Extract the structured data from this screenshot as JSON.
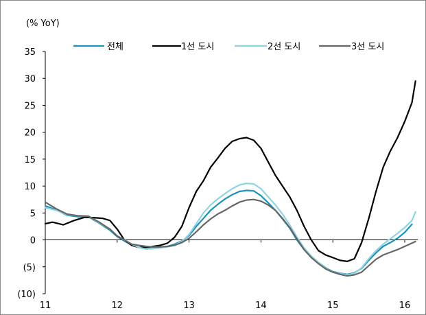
{
  "chart_data": {
    "type": "line",
    "unit_label": "(% YoY)",
    "y_ticks": [
      35,
      30,
      25,
      20,
      15,
      10,
      5,
      0,
      -5,
      -10
    ],
    "y_tick_labels": [
      "35",
      "30",
      "25",
      "20",
      "15",
      "10",
      "5",
      "0",
      "(5)",
      "(10)"
    ],
    "ylim": [
      -10,
      35
    ],
    "x_ticks": [
      11,
      12,
      13,
      14,
      15,
      16
    ],
    "x_tick_labels": [
      "11",
      "12",
      "13",
      "14",
      "15",
      "16"
    ],
    "xlim": [
      11,
      16.15
    ],
    "legend_position": "top",
    "grid": false,
    "series": [
      {
        "name": "전체",
        "color": "#1b93b8",
        "points": [
          [
            11.0,
            6.3
          ],
          [
            11.15,
            5.6
          ],
          [
            11.3,
            4.6
          ],
          [
            11.45,
            4.3
          ],
          [
            11.6,
            4.3
          ],
          [
            11.75,
            3.1
          ],
          [
            11.9,
            1.8
          ],
          [
            12.0,
            0.6
          ],
          [
            12.1,
            -0.2
          ],
          [
            12.2,
            -0.9
          ],
          [
            12.3,
            -1.4
          ],
          [
            12.4,
            -1.6
          ],
          [
            12.5,
            -1.5
          ],
          [
            12.6,
            -1.3
          ],
          [
            12.7,
            -1.2
          ],
          [
            12.8,
            -0.8
          ],
          [
            12.9,
            -0.2
          ],
          [
            13.0,
            0.8
          ],
          [
            13.1,
            2.5
          ],
          [
            13.2,
            4.0
          ],
          [
            13.3,
            5.5
          ],
          [
            13.4,
            6.6
          ],
          [
            13.5,
            7.6
          ],
          [
            13.6,
            8.4
          ],
          [
            13.7,
            9.0
          ],
          [
            13.8,
            9.2
          ],
          [
            13.9,
            9.1
          ],
          [
            14.0,
            8.2
          ],
          [
            14.1,
            6.9
          ],
          [
            14.2,
            5.5
          ],
          [
            14.3,
            3.9
          ],
          [
            14.4,
            2.2
          ],
          [
            14.5,
            0.0
          ],
          [
            14.6,
            -1.8
          ],
          [
            14.7,
            -3.2
          ],
          [
            14.8,
            -4.2
          ],
          [
            14.9,
            -5.2
          ],
          [
            15.0,
            -5.9
          ],
          [
            15.1,
            -6.2
          ],
          [
            15.2,
            -6.4
          ],
          [
            15.3,
            -6.1
          ],
          [
            15.4,
            -5.3
          ],
          [
            15.5,
            -3.8
          ],
          [
            15.6,
            -2.4
          ],
          [
            15.7,
            -1.2
          ],
          [
            15.8,
            -0.5
          ],
          [
            15.9,
            0.3
          ],
          [
            16.0,
            1.4
          ],
          [
            16.1,
            2.9
          ]
        ]
      },
      {
        "name": "1선 도시",
        "color": "#000000",
        "points": [
          [
            11.0,
            3.0
          ],
          [
            11.1,
            3.3
          ],
          [
            11.25,
            2.8
          ],
          [
            11.4,
            3.6
          ],
          [
            11.55,
            4.2
          ],
          [
            11.7,
            4.1
          ],
          [
            11.8,
            4.0
          ],
          [
            11.9,
            3.6
          ],
          [
            12.0,
            2.0
          ],
          [
            12.1,
            0.0
          ],
          [
            12.2,
            -1.0
          ],
          [
            12.3,
            -1.4
          ],
          [
            12.45,
            -1.3
          ],
          [
            12.6,
            -1.0
          ],
          [
            12.7,
            -0.6
          ],
          [
            12.8,
            0.5
          ],
          [
            12.9,
            2.5
          ],
          [
            13.0,
            6.0
          ],
          [
            13.1,
            9.0
          ],
          [
            13.2,
            11.0
          ],
          [
            13.3,
            13.5
          ],
          [
            13.4,
            15.2
          ],
          [
            13.5,
            17.0
          ],
          [
            13.6,
            18.3
          ],
          [
            13.7,
            18.8
          ],
          [
            13.8,
            19.0
          ],
          [
            13.9,
            18.5
          ],
          [
            14.0,
            17.0
          ],
          [
            14.1,
            14.5
          ],
          [
            14.2,
            12.0
          ],
          [
            14.3,
            10.0
          ],
          [
            14.4,
            8.0
          ],
          [
            14.5,
            5.5
          ],
          [
            14.6,
            2.5
          ],
          [
            14.7,
            0.0
          ],
          [
            14.8,
            -2.0
          ],
          [
            14.9,
            -2.8
          ],
          [
            15.0,
            -3.3
          ],
          [
            15.1,
            -3.8
          ],
          [
            15.2,
            -4.0
          ],
          [
            15.3,
            -3.5
          ],
          [
            15.4,
            -0.5
          ],
          [
            15.5,
            4.0
          ],
          [
            15.6,
            9.0
          ],
          [
            15.7,
            13.5
          ],
          [
            15.8,
            16.5
          ],
          [
            15.9,
            19.0
          ],
          [
            16.0,
            22.0
          ],
          [
            16.1,
            25.5
          ],
          [
            16.15,
            29.5
          ]
        ]
      },
      {
        "name": "2선 도시",
        "color": "#8fd3e3",
        "points": [
          [
            11.0,
            6.0
          ],
          [
            11.15,
            5.5
          ],
          [
            11.3,
            4.7
          ],
          [
            11.45,
            4.5
          ],
          [
            11.6,
            4.4
          ],
          [
            11.75,
            3.2
          ],
          [
            11.9,
            2.0
          ],
          [
            12.0,
            0.8
          ],
          [
            12.1,
            0.0
          ],
          [
            12.2,
            -0.8
          ],
          [
            12.3,
            -1.4
          ],
          [
            12.4,
            -1.7
          ],
          [
            12.5,
            -1.6
          ],
          [
            12.6,
            -1.5
          ],
          [
            12.7,
            -1.3
          ],
          [
            12.8,
            -1.0
          ],
          [
            12.9,
            -0.3
          ],
          [
            13.0,
            1.0
          ],
          [
            13.1,
            3.0
          ],
          [
            13.2,
            5.0
          ],
          [
            13.3,
            6.5
          ],
          [
            13.4,
            7.6
          ],
          [
            13.5,
            8.6
          ],
          [
            13.6,
            9.5
          ],
          [
            13.7,
            10.2
          ],
          [
            13.8,
            10.5
          ],
          [
            13.9,
            10.4
          ],
          [
            14.0,
            9.5
          ],
          [
            14.1,
            8.0
          ],
          [
            14.2,
            6.5
          ],
          [
            14.3,
            4.8
          ],
          [
            14.4,
            2.8
          ],
          [
            14.5,
            0.5
          ],
          [
            14.6,
            -1.5
          ],
          [
            14.7,
            -3.0
          ],
          [
            14.8,
            -4.2
          ],
          [
            14.9,
            -5.3
          ],
          [
            15.0,
            -6.0
          ],
          [
            15.1,
            -6.3
          ],
          [
            15.2,
            -6.5
          ],
          [
            15.3,
            -6.2
          ],
          [
            15.4,
            -5.2
          ],
          [
            15.5,
            -3.5
          ],
          [
            15.6,
            -2.0
          ],
          [
            15.7,
            -0.8
          ],
          [
            15.8,
            0.2
          ],
          [
            15.9,
            1.2
          ],
          [
            16.0,
            2.3
          ],
          [
            16.1,
            3.6
          ],
          [
            16.15,
            5.2
          ]
        ]
      },
      {
        "name": "3선 도시",
        "color": "#666666",
        "points": [
          [
            11.0,
            7.0
          ],
          [
            11.15,
            5.8
          ],
          [
            11.3,
            4.8
          ],
          [
            11.45,
            4.5
          ],
          [
            11.6,
            4.4
          ],
          [
            11.75,
            3.3
          ],
          [
            11.9,
            2.0
          ],
          [
            12.0,
            0.7
          ],
          [
            12.1,
            0.0
          ],
          [
            12.2,
            -0.8
          ],
          [
            12.3,
            -1.0
          ],
          [
            12.4,
            -1.2
          ],
          [
            12.5,
            -1.3
          ],
          [
            12.6,
            -1.3
          ],
          [
            12.7,
            -1.2
          ],
          [
            12.8,
            -1.0
          ],
          [
            12.9,
            -0.5
          ],
          [
            13.0,
            0.3
          ],
          [
            13.1,
            1.5
          ],
          [
            13.2,
            2.8
          ],
          [
            13.3,
            3.9
          ],
          [
            13.4,
            4.8
          ],
          [
            13.5,
            5.5
          ],
          [
            13.6,
            6.3
          ],
          [
            13.7,
            7.0
          ],
          [
            13.8,
            7.4
          ],
          [
            13.9,
            7.5
          ],
          [
            14.0,
            7.2
          ],
          [
            14.1,
            6.5
          ],
          [
            14.2,
            5.5
          ],
          [
            14.3,
            4.0
          ],
          [
            14.4,
            2.3
          ],
          [
            14.5,
            0.2
          ],
          [
            14.6,
            -1.8
          ],
          [
            14.7,
            -3.3
          ],
          [
            14.8,
            -4.4
          ],
          [
            14.9,
            -5.4
          ],
          [
            15.0,
            -6.0
          ],
          [
            15.1,
            -6.4
          ],
          [
            15.2,
            -6.7
          ],
          [
            15.3,
            -6.5
          ],
          [
            15.4,
            -6.0
          ],
          [
            15.5,
            -4.8
          ],
          [
            15.6,
            -3.6
          ],
          [
            15.7,
            -2.8
          ],
          [
            15.8,
            -2.3
          ],
          [
            15.9,
            -1.8
          ],
          [
            16.0,
            -1.2
          ],
          [
            16.1,
            -0.6
          ],
          [
            16.15,
            -0.3
          ]
        ]
      }
    ]
  }
}
